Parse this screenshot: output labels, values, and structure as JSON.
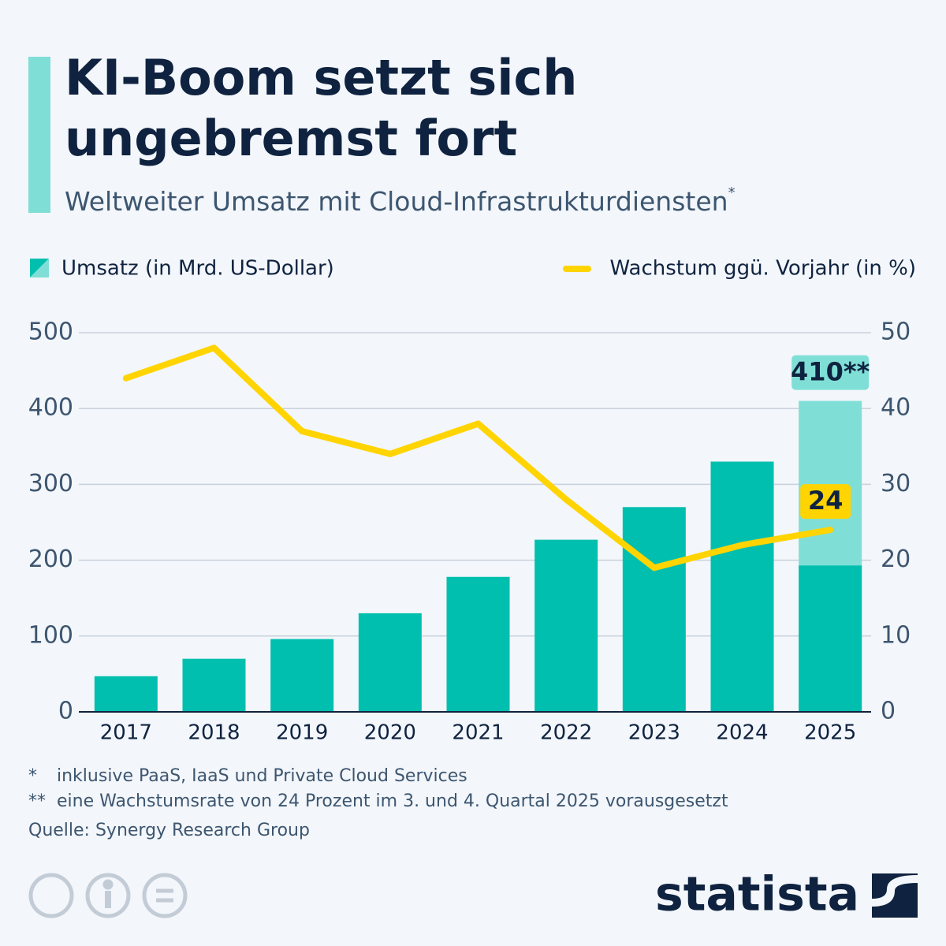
{
  "chart_data": {
    "type": "bar_line",
    "title": [
      "KI-Boom setzt sich",
      "ungebremst fort"
    ],
    "subtitle": "Weltweiter Umsatz mit Cloud-Infrastrukturdiensten",
    "subtitle_mark": "*",
    "categories": [
      "2017",
      "2018",
      "2019",
      "2020",
      "2021",
      "2022",
      "2023",
      "2024",
      "2025"
    ],
    "series": [
      {
        "name": "Umsatz (in Mrd. US-Dollar)",
        "type": "bar",
        "color": "#00bfae",
        "values": [
          47,
          70,
          96,
          130,
          178,
          227,
          270,
          330,
          193
        ]
      },
      {
        "type": "bar",
        "color": "#7fdfd6",
        "values": [
          null,
          null,
          null,
          null,
          null,
          null,
          null,
          null,
          410
        ],
        "value_labels": [
          null,
          null,
          null,
          null,
          null,
          null,
          null,
          null,
          "410**"
        ]
      },
      {
        "name": "Wachstum ggü. Vorjahr (in %)",
        "type": "line",
        "axis": "y2",
        "color": "#ffd400",
        "values": [
          44,
          48,
          37,
          34,
          38,
          28,
          19,
          22,
          24
        ],
        "value_labels": [
          null,
          null,
          null,
          null,
          null,
          null,
          null,
          null,
          "24"
        ]
      }
    ],
    "ylim": [
      0,
      500
    ],
    "yticks": [
      0,
      100,
      200,
      300,
      400,
      500
    ],
    "y2lim": [
      0,
      50
    ],
    "y2ticks": [
      0,
      10,
      20,
      30,
      40,
      50
    ],
    "grid": true,
    "footnotes": [
      {
        "mark": "*",
        "text": "inklusive PaaS, IaaS und Private Cloud Services"
      },
      {
        "mark": "**",
        "text": "eine Wachstumsrate von 24 Prozent im 3. und 4. Quartal 2025 vorausgesetzt"
      }
    ],
    "source": "Quelle: Synergy Research Group",
    "brand": "statista"
  }
}
